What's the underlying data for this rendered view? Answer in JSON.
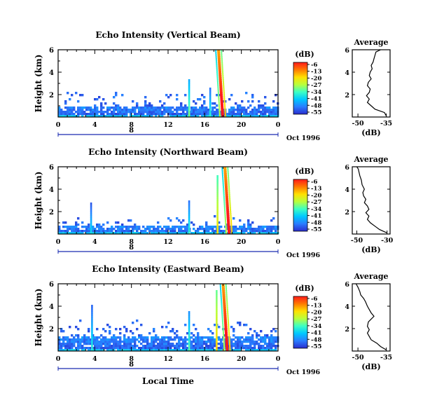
{
  "figure": {
    "month_label": "Oct 1996",
    "day_label": "8",
    "xlabel": "Local Time",
    "ylabel": "Height (km)",
    "units_label": "(dB)",
    "avg_xlabel": "(dB)"
  },
  "colorbar": {
    "ticks": [
      "-6",
      "-13",
      "-20",
      "-27",
      "-34",
      "-41",
      "-48",
      "-55"
    ],
    "stops": [
      "#ff1a1a",
      "#ff7a00",
      "#ffe000",
      "#b8ff3c",
      "#3cffc4",
      "#00c8ff",
      "#2a7cff",
      "#2a2ccd"
    ]
  },
  "chart_data": [
    {
      "type": "heatmap",
      "title": "Echo Intensity (Vertical Beam)",
      "x_ticks": [
        "0",
        "4",
        "8",
        "12",
        "16",
        "20",
        "0"
      ],
      "y_ticks": [
        "6",
        "4",
        "2"
      ],
      "xlim": [
        0,
        24
      ],
      "ylim": [
        0,
        6
      ],
      "clim": [
        -55,
        -6
      ],
      "layer_top_km": 0.9,
      "scatter_top_km": 2.3,
      "features": [
        {
          "x_hours": 14.3,
          "top_km": 3.3,
          "value_db": -30
        },
        {
          "x_hours": 16.6,
          "top_km": 2.5,
          "value_db": -35
        },
        {
          "x_hours": 17.5,
          "top_km": 6.0,
          "value_db": -8
        }
      ]
    },
    {
      "type": "line",
      "title": "Average",
      "x_ticks": [
        "-50",
        "-35"
      ],
      "y_ticks": [
        "6",
        "4",
        "2"
      ],
      "xlim": [
        -53,
        -33
      ],
      "ylim": [
        0,
        6
      ],
      "series": [
        {
          "x": [
            -35.0,
            -36.0,
            -41.0,
            -43.0,
            -45.0,
            -44.0,
            -45.5,
            -44.0,
            -43.5,
            -45.0,
            -44.5,
            -43.0,
            -44.0,
            -43.5,
            -42.5,
            -43.0,
            -42.0,
            -41.5,
            -41.0,
            -40.5,
            -38.0
          ],
          "y": [
            0.1,
            0.4,
            0.7,
            1.0,
            1.3,
            1.6,
            1.9,
            2.2,
            2.5,
            2.8,
            3.1,
            3.4,
            3.7,
            4.0,
            4.3,
            4.6,
            4.9,
            5.2,
            5.5,
            5.8,
            6.0
          ]
        }
      ]
    },
    {
      "type": "heatmap",
      "title": "Echo Intensity (Northward Beam)",
      "x_ticks": [
        "0",
        "4",
        "8",
        "12",
        "16",
        "20",
        "0"
      ],
      "y_ticks": [
        "6",
        "4",
        "2"
      ],
      "xlim": [
        0,
        24
      ],
      "ylim": [
        0,
        6
      ],
      "clim": [
        -55,
        -6
      ],
      "layer_top_km": 0.6,
      "scatter_top_km": 1.6,
      "features": [
        {
          "x_hours": 3.6,
          "top_km": 2.8,
          "value_db": -38
        },
        {
          "x_hours": 14.3,
          "top_km": 2.9,
          "value_db": -35
        },
        {
          "x_hours": 17.4,
          "top_km": 5.2,
          "value_db": -20
        },
        {
          "x_hours": 18.2,
          "top_km": 6.0,
          "value_db": -8
        }
      ]
    },
    {
      "type": "line",
      "title": "Average",
      "x_ticks": [
        "-50",
        "-30"
      ],
      "y_ticks": [
        "6",
        "4",
        "2"
      ],
      "xlim": [
        -53,
        -28
      ],
      "ylim": [
        0,
        6
      ],
      "series": [
        {
          "x": [
            -30.0,
            -35.0,
            -38.0,
            -41.0,
            -43.0,
            -42.0,
            -44.0,
            -42.0,
            -43.0,
            -45.0,
            -44.0,
            -45.5,
            -46.0,
            -45.0,
            -46.5,
            -47.0,
            -48.0,
            -48.5,
            -49.0,
            -50.0
          ],
          "y": [
            0.1,
            0.4,
            0.7,
            1.0,
            1.3,
            1.6,
            1.9,
            2.2,
            2.5,
            2.8,
            3.1,
            3.4,
            3.7,
            4.0,
            4.4,
            4.8,
            5.2,
            5.5,
            5.8,
            6.0
          ]
        }
      ]
    },
    {
      "type": "heatmap",
      "title": "Echo Intensity (Eastward Beam)",
      "x_ticks": [
        "0",
        "4",
        "8",
        "12",
        "16",
        "20",
        "0"
      ],
      "y_ticks": [
        "6",
        "4",
        "2"
      ],
      "xlim": [
        0,
        24
      ],
      "ylim": [
        0,
        6
      ],
      "clim": [
        -55,
        -6
      ],
      "layer_top_km": 1.2,
      "scatter_top_km": 2.8,
      "features": [
        {
          "x_hours": 3.7,
          "top_km": 4.0,
          "value_db": -36
        },
        {
          "x_hours": 14.3,
          "top_km": 3.4,
          "value_db": -32
        },
        {
          "x_hours": 17.3,
          "top_km": 5.4,
          "value_db": -18
        },
        {
          "x_hours": 18.0,
          "top_km": 6.0,
          "value_db": -8
        }
      ]
    },
    {
      "type": "line",
      "title": "Average",
      "x_ticks": [
        "-50",
        "-35"
      ],
      "y_ticks": [
        "6",
        "4",
        "2"
      ],
      "xlim": [
        -53,
        -33
      ],
      "ylim": [
        0,
        6
      ],
      "series": [
        {
          "x": [
            -35.0,
            -38.0,
            -40.0,
            -43.0,
            -44.0,
            -45.0,
            -44.0,
            -45.0,
            -44.5,
            -41.5,
            -43.0,
            -44.0,
            -45.0,
            -46.0,
            -47.0,
            -48.5,
            -49.0,
            -50.0,
            -51.0
          ],
          "y": [
            0.1,
            0.4,
            0.7,
            1.0,
            1.3,
            1.6,
            1.9,
            2.2,
            2.6,
            3.1,
            3.4,
            3.7,
            4.0,
            4.4,
            4.7,
            5.0,
            5.3,
            5.7,
            6.0
          ]
        }
      ]
    }
  ]
}
